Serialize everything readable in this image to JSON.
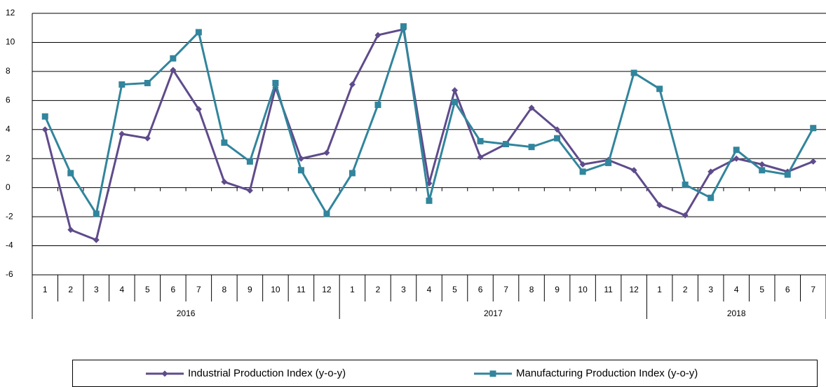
{
  "chart_data": {
    "type": "line",
    "categories": [
      "1",
      "2",
      "3",
      "4",
      "5",
      "6",
      "7",
      "8",
      "9",
      "10",
      "11",
      "12",
      "1",
      "2",
      "3",
      "4",
      "5",
      "6",
      "7",
      "8",
      "9",
      "10",
      "11",
      "12",
      "1",
      "2",
      "3",
      "4",
      "5",
      "6",
      "7"
    ],
    "category_groups": [
      {
        "label": "2016",
        "size": 12
      },
      {
        "label": "2017",
        "size": 12
      },
      {
        "label": "2018",
        "size": 7
      }
    ],
    "series": [
      {
        "name": "Industrial Production Index (y-o-y)",
        "color": "#5f4b8b",
        "marker": "diamond",
        "values": [
          4.0,
          -2.9,
          -3.6,
          3.7,
          3.4,
          8.1,
          5.4,
          0.4,
          -0.2,
          6.9,
          2.0,
          2.4,
          7.1,
          10.5,
          10.9,
          0.3,
          6.7,
          2.1,
          3.0,
          5.5,
          4.0,
          1.6,
          1.9,
          1.2,
          -1.2,
          -1.9,
          1.1,
          2.0,
          1.6,
          1.1,
          1.8
        ]
      },
      {
        "name": "Manufacturing Production Index (y-o-y)",
        "color": "#31859c",
        "marker": "square",
        "values": [
          4.9,
          1.0,
          -1.8,
          7.1,
          7.2,
          8.9,
          10.7,
          3.1,
          1.8,
          7.2,
          1.2,
          -1.8,
          1.0,
          5.7,
          11.1,
          -0.9,
          5.9,
          3.2,
          3.0,
          2.8,
          3.4,
          1.1,
          1.7,
          7.9,
          6.8,
          0.2,
          -0.7,
          2.6,
          1.2,
          0.9,
          4.1
        ]
      }
    ],
    "ylim": [
      -6,
      12
    ],
    "yticks": [
      -6,
      -4,
      -2,
      0,
      2,
      4,
      6,
      8,
      10,
      12
    ],
    "grid": true,
    "legend": "bottom"
  }
}
